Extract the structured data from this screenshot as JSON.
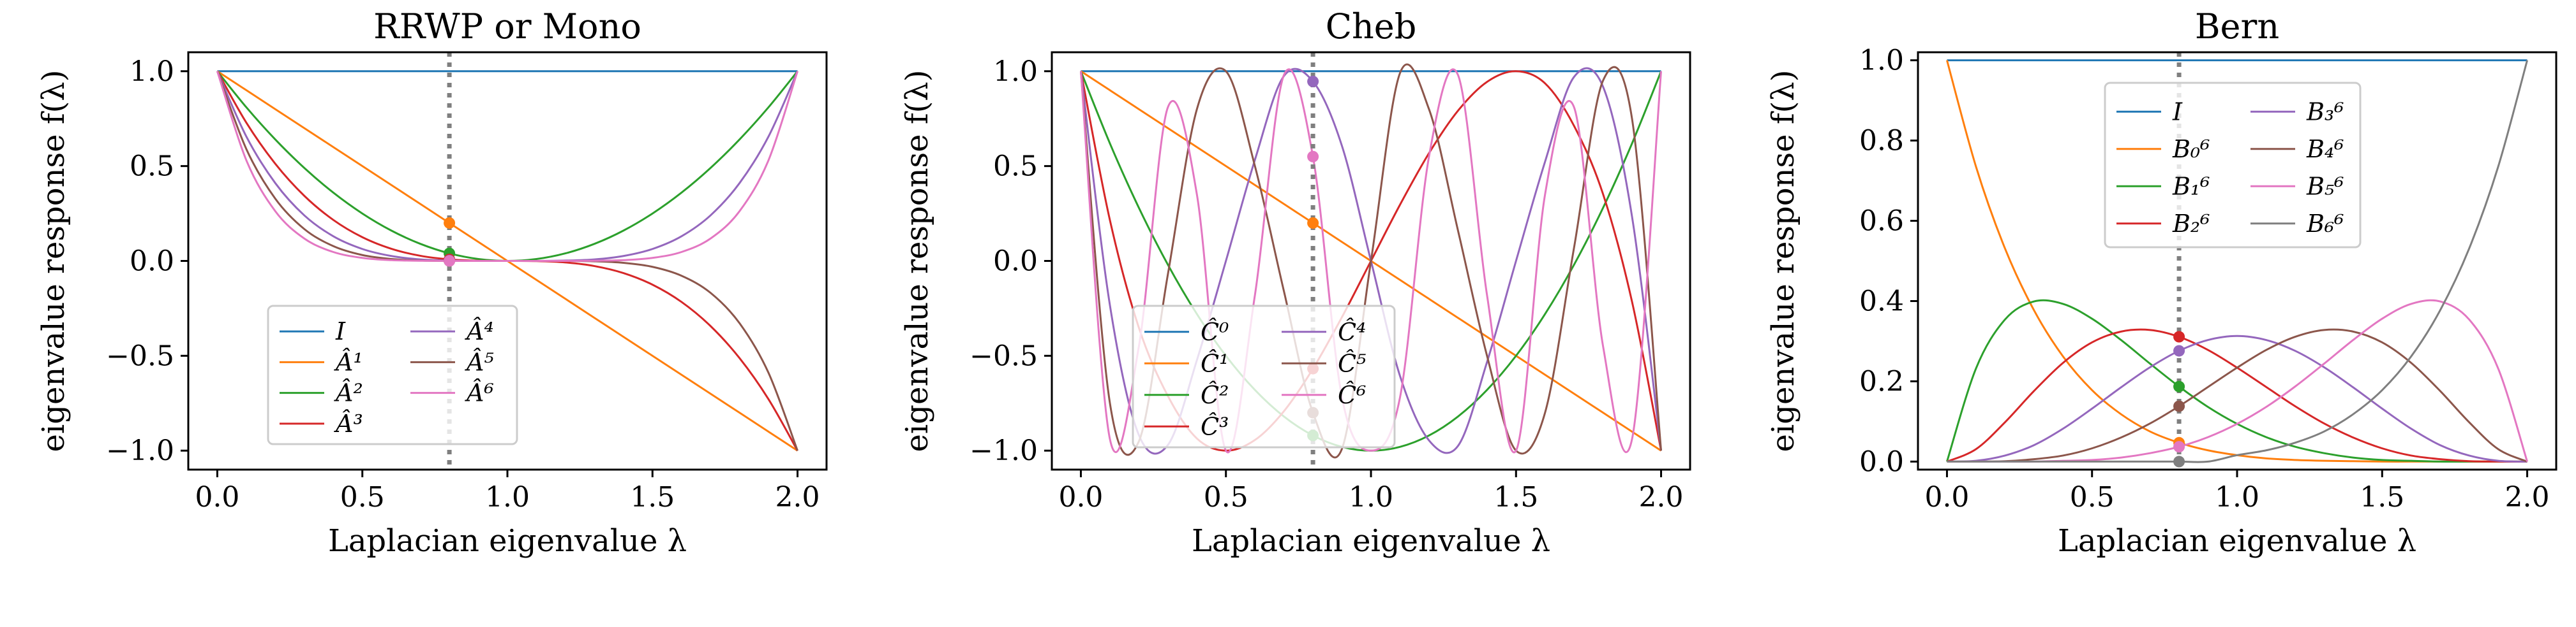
{
  "figure": {
    "panel_titles": [
      "RRWP or Mono",
      "Cheb",
      "Bern"
    ],
    "xlabel": "Laplacian eigenvalue λ",
    "ylabel": "eigenvalue response f(λ)"
  },
  "colors": {
    "tab10": [
      "#1f77b4",
      "#ff7f0e",
      "#2ca02c",
      "#d62728",
      "#9467bd",
      "#8c564b",
      "#e377c2",
      "#7f7f7f",
      "#bcbd22",
      "#17becf"
    ],
    "vline": "#7f7f7f"
  },
  "chart_data": [
    {
      "type": "line",
      "title": "RRWP or Mono",
      "xlabel": "Laplacian eigenvalue λ",
      "ylabel": "eigenvalue response f(λ)",
      "xlim": [
        -0.1,
        2.1
      ],
      "ylim": [
        -1.1,
        1.1
      ],
      "xticks": [
        0.0,
        0.5,
        1.0,
        1.5,
        2.0
      ],
      "xtick_labels": [
        "0.0",
        "0.5",
        "1.0",
        "1.5",
        "2.0"
      ],
      "yticks": [
        -1.0,
        -0.5,
        0.0,
        0.5,
        1.0
      ],
      "ytick_labels": [
        "−1.0",
        "−0.5",
        "0.0",
        "0.5",
        "1.0"
      ],
      "grid": false,
      "marker_x": 0.8,
      "legend": {
        "placement": "lower-center",
        "columns": 2
      },
      "x": [
        0.0,
        0.1,
        0.2,
        0.3,
        0.4,
        0.5,
        0.6,
        0.7,
        0.8,
        0.9,
        1.0,
        1.1,
        1.2,
        1.3,
        1.4,
        1.5,
        1.6,
        1.7,
        1.8,
        1.9,
        2.0
      ],
      "series": [
        {
          "name": "I",
          "values": [
            1,
            1,
            1,
            1,
            1,
            1,
            1,
            1,
            1,
            1,
            1,
            1,
            1,
            1,
            1,
            1,
            1,
            1,
            1,
            1,
            1
          ]
        },
        {
          "name": "Â¹",
          "values": [
            1.0,
            0.9,
            0.8,
            0.7,
            0.6,
            0.5,
            0.4,
            0.3,
            0.2,
            0.1,
            0.0,
            -0.1,
            -0.2,
            -0.3,
            -0.4,
            -0.5,
            -0.6,
            -0.7,
            -0.8,
            -0.9,
            -1.0
          ]
        },
        {
          "name": "Â²",
          "values": [
            1.0,
            0.81,
            0.64,
            0.49,
            0.36,
            0.25,
            0.16,
            0.09,
            0.04,
            0.01,
            0.0,
            0.01,
            0.04,
            0.09,
            0.16,
            0.25,
            0.36,
            0.49,
            0.64,
            0.81,
            1.0
          ]
        },
        {
          "name": "Â³",
          "values": [
            1.0,
            0.729,
            0.512,
            0.343,
            0.216,
            0.125,
            0.064,
            0.027,
            0.008,
            0.001,
            0.0,
            -0.001,
            -0.008,
            -0.027,
            -0.064,
            -0.125,
            -0.216,
            -0.343,
            -0.512,
            -0.729,
            -1.0
          ]
        },
        {
          "name": "Â⁴",
          "values": [
            1.0,
            0.656,
            0.41,
            0.24,
            0.13,
            0.063,
            0.026,
            0.008,
            0.002,
            0.0,
            0.0,
            0.0,
            0.002,
            0.008,
            0.026,
            0.063,
            0.13,
            0.24,
            0.41,
            0.656,
            1.0
          ]
        },
        {
          "name": "Â⁵",
          "values": [
            1.0,
            0.59,
            0.328,
            0.168,
            0.078,
            0.031,
            0.01,
            0.002,
            0.0,
            0.0,
            0.0,
            0.0,
            0.0,
            -0.002,
            -0.01,
            -0.031,
            -0.078,
            -0.168,
            -0.328,
            -0.59,
            -1.0
          ]
        },
        {
          "name": "Â⁶",
          "values": [
            1.0,
            0.531,
            0.262,
            0.118,
            0.047,
            0.016,
            0.004,
            0.001,
            0.0,
            0.0,
            0.0,
            0.0,
            0.0,
            0.001,
            0.004,
            0.016,
            0.047,
            0.118,
            0.262,
            0.531,
            1.0
          ]
        }
      ]
    },
    {
      "type": "line",
      "title": "Cheb",
      "xlabel": "Laplacian eigenvalue λ",
      "ylabel": "eigenvalue response f(λ)",
      "xlim": [
        -0.1,
        2.1
      ],
      "ylim": [
        -1.1,
        1.1
      ],
      "xticks": [
        0.0,
        0.5,
        1.0,
        1.5,
        2.0
      ],
      "xtick_labels": [
        "0.0",
        "0.5",
        "1.0",
        "1.5",
        "2.0"
      ],
      "yticks": [
        -1.0,
        -0.5,
        0.0,
        0.5,
        1.0
      ],
      "ytick_labels": [
        "−1.0",
        "−0.5",
        "0.0",
        "0.5",
        "1.0"
      ],
      "grid": false,
      "marker_x": 0.8,
      "legend": {
        "placement": "lower-center",
        "columns": 2
      },
      "x": [
        0.0,
        0.1,
        0.2,
        0.3,
        0.4,
        0.5,
        0.6,
        0.7,
        0.8,
        0.9,
        1.0,
        1.1,
        1.2,
        1.3,
        1.4,
        1.5,
        1.6,
        1.7,
        1.8,
        1.9,
        2.0
      ],
      "series": [
        {
          "name": "Ĉ⁰",
          "values": [
            1,
            1,
            1,
            1,
            1,
            1,
            1,
            1,
            1,
            1,
            1,
            1,
            1,
            1,
            1,
            1,
            1,
            1,
            1,
            1,
            1
          ]
        },
        {
          "name": "Ĉ¹",
          "values": [
            1.0,
            0.9,
            0.8,
            0.7,
            0.6,
            0.5,
            0.4,
            0.3,
            0.2,
            0.1,
            0.0,
            -0.1,
            -0.2,
            -0.3,
            -0.4,
            -0.5,
            -0.6,
            -0.7,
            -0.8,
            -0.9,
            -1.0
          ]
        },
        {
          "name": "Ĉ²",
          "values": [
            1.0,
            0.62,
            0.28,
            -0.02,
            -0.28,
            -0.5,
            -0.68,
            -0.82,
            -0.92,
            -0.98,
            -1.0,
            -0.98,
            -0.92,
            -0.82,
            -0.68,
            -0.5,
            -0.28,
            -0.02,
            0.28,
            0.62,
            1.0
          ]
        },
        {
          "name": "Ĉ³",
          "values": [
            1.0,
            0.216,
            -0.352,
            -0.712,
            -0.936,
            -1.0,
            -0.944,
            -0.792,
            -0.568,
            -0.296,
            0.0,
            0.296,
            0.568,
            0.792,
            0.944,
            1.0,
            0.936,
            0.712,
            0.352,
            -0.216,
            -1.0
          ]
        },
        {
          "name": "Ĉ⁴",
          "values": [
            1.0,
            -0.232,
            -0.918,
            -0.97,
            -0.523,
            0.0,
            0.533,
            0.975,
            0.946,
            0.606,
            0.0,
            -0.606,
            -0.946,
            -0.975,
            -0.533,
            0.0,
            0.523,
            0.97,
            0.918,
            0.232,
            -1.0
          ]
        },
        {
          "name": "Ĉ⁵",
          "values": [
            1.0,
            -0.748,
            -0.951,
            -0.07,
            0.8,
            1.0,
            0.5,
            -0.16,
            -0.8,
            -0.99,
            0.0,
            0.99,
            0.8,
            0.16,
            -0.5,
            -1.0,
            -0.8,
            0.07,
            0.951,
            0.748,
            -1.0
          ]
        },
        {
          "name": "Ĉ⁶",
          "values": [
            1.0,
            -0.938,
            -0.45,
            0.81,
            0.35,
            -1.0,
            -0.18,
            0.98,
            0.55,
            -0.72,
            -1.0,
            -0.72,
            0.55,
            0.98,
            -0.18,
            -1.0,
            0.35,
            0.81,
            -0.45,
            -0.938,
            1.0
          ]
        }
      ]
    },
    {
      "type": "line",
      "title": "Bern",
      "xlabel": "Laplacian eigenvalue λ",
      "ylabel": "eigenvalue response f(λ)",
      "xlim": [
        -0.1,
        2.1
      ],
      "ylim": [
        -0.02,
        1.02
      ],
      "xticks": [
        0.0,
        0.5,
        1.0,
        1.5,
        2.0
      ],
      "xtick_labels": [
        "0.0",
        "0.5",
        "1.0",
        "1.5",
        "2.0"
      ],
      "yticks": [
        0.0,
        0.2,
        0.4,
        0.6,
        0.8,
        1.0
      ],
      "ytick_labels": [
        "0.0",
        "0.2",
        "0.4",
        "0.6",
        "0.8",
        "1.0"
      ],
      "grid": false,
      "marker_x": 0.8,
      "legend": {
        "placement": "upper-center",
        "columns": 2
      },
      "x": [
        0.0,
        0.1,
        0.2,
        0.3,
        0.4,
        0.5,
        0.6,
        0.7,
        0.8,
        0.9,
        1.0,
        1.1,
        1.2,
        1.3,
        1.4,
        1.5,
        1.6,
        1.7,
        1.8,
        1.9,
        2.0
      ],
      "series": [
        {
          "name": "I",
          "values": [
            1,
            1,
            1,
            1,
            1,
            1,
            1,
            1,
            1,
            1,
            1,
            1,
            1,
            1,
            1,
            1,
            1,
            1,
            1,
            1,
            1
          ]
        },
        {
          "name": "B₀⁶",
          "values": [
            1.0,
            0.735,
            0.531,
            0.377,
            0.262,
            0.178,
            0.118,
            0.075,
            0.047,
            0.028,
            0.016,
            0.008,
            0.004,
            0.002,
            0.001,
            0.0,
            0.0,
            0.0,
            0.0,
            0.0,
            0.0
          ]
        },
        {
          "name": "B₁⁶",
          "values": [
            0.0,
            0.232,
            0.354,
            0.399,
            0.393,
            0.356,
            0.303,
            0.244,
            0.187,
            0.136,
            0.094,
            0.061,
            0.037,
            0.021,
            0.01,
            0.004,
            0.002,
            0.0,
            0.0,
            0.0,
            0.0
          ]
        },
        {
          "name": "B₂⁶",
          "values": [
            0.0,
            0.031,
            0.098,
            0.176,
            0.246,
            0.297,
            0.324,
            0.328,
            0.311,
            0.278,
            0.234,
            0.186,
            0.138,
            0.095,
            0.06,
            0.033,
            0.015,
            0.006,
            0.001,
            0.0,
            0.0
          ]
        },
        {
          "name": "B₃⁶",
          "values": [
            0.0,
            0.002,
            0.015,
            0.041,
            0.082,
            0.132,
            0.185,
            0.235,
            0.276,
            0.303,
            0.313,
            0.303,
            0.276,
            0.235,
            0.185,
            0.132,
            0.082,
            0.041,
            0.015,
            0.002,
            0.0
          ]
        },
        {
          "name": "B₄⁶",
          "values": [
            0.0,
            0.0,
            0.001,
            0.006,
            0.015,
            0.033,
            0.06,
            0.095,
            0.138,
            0.186,
            0.234,
            0.278,
            0.311,
            0.328,
            0.324,
            0.297,
            0.246,
            0.176,
            0.098,
            0.031,
            0.0
          ]
        },
        {
          "name": "B₅⁶",
          "values": [
            0.0,
            0.0,
            0.0,
            0.0,
            0.002,
            0.004,
            0.01,
            0.021,
            0.037,
            0.061,
            0.094,
            0.136,
            0.187,
            0.244,
            0.303,
            0.356,
            0.393,
            0.399,
            0.354,
            0.232,
            0.0
          ]
        },
        {
          "name": "B₆⁶",
          "values": [
            0.0,
            0.0,
            0.0,
            0.0,
            0.0,
            0.0,
            0.0,
            0.0,
            0.0,
            0.0,
            0.016,
            0.028,
            0.047,
            0.075,
            0.118,
            0.178,
            0.262,
            0.377,
            0.531,
            0.735,
            1.0
          ]
        }
      ]
    }
  ]
}
